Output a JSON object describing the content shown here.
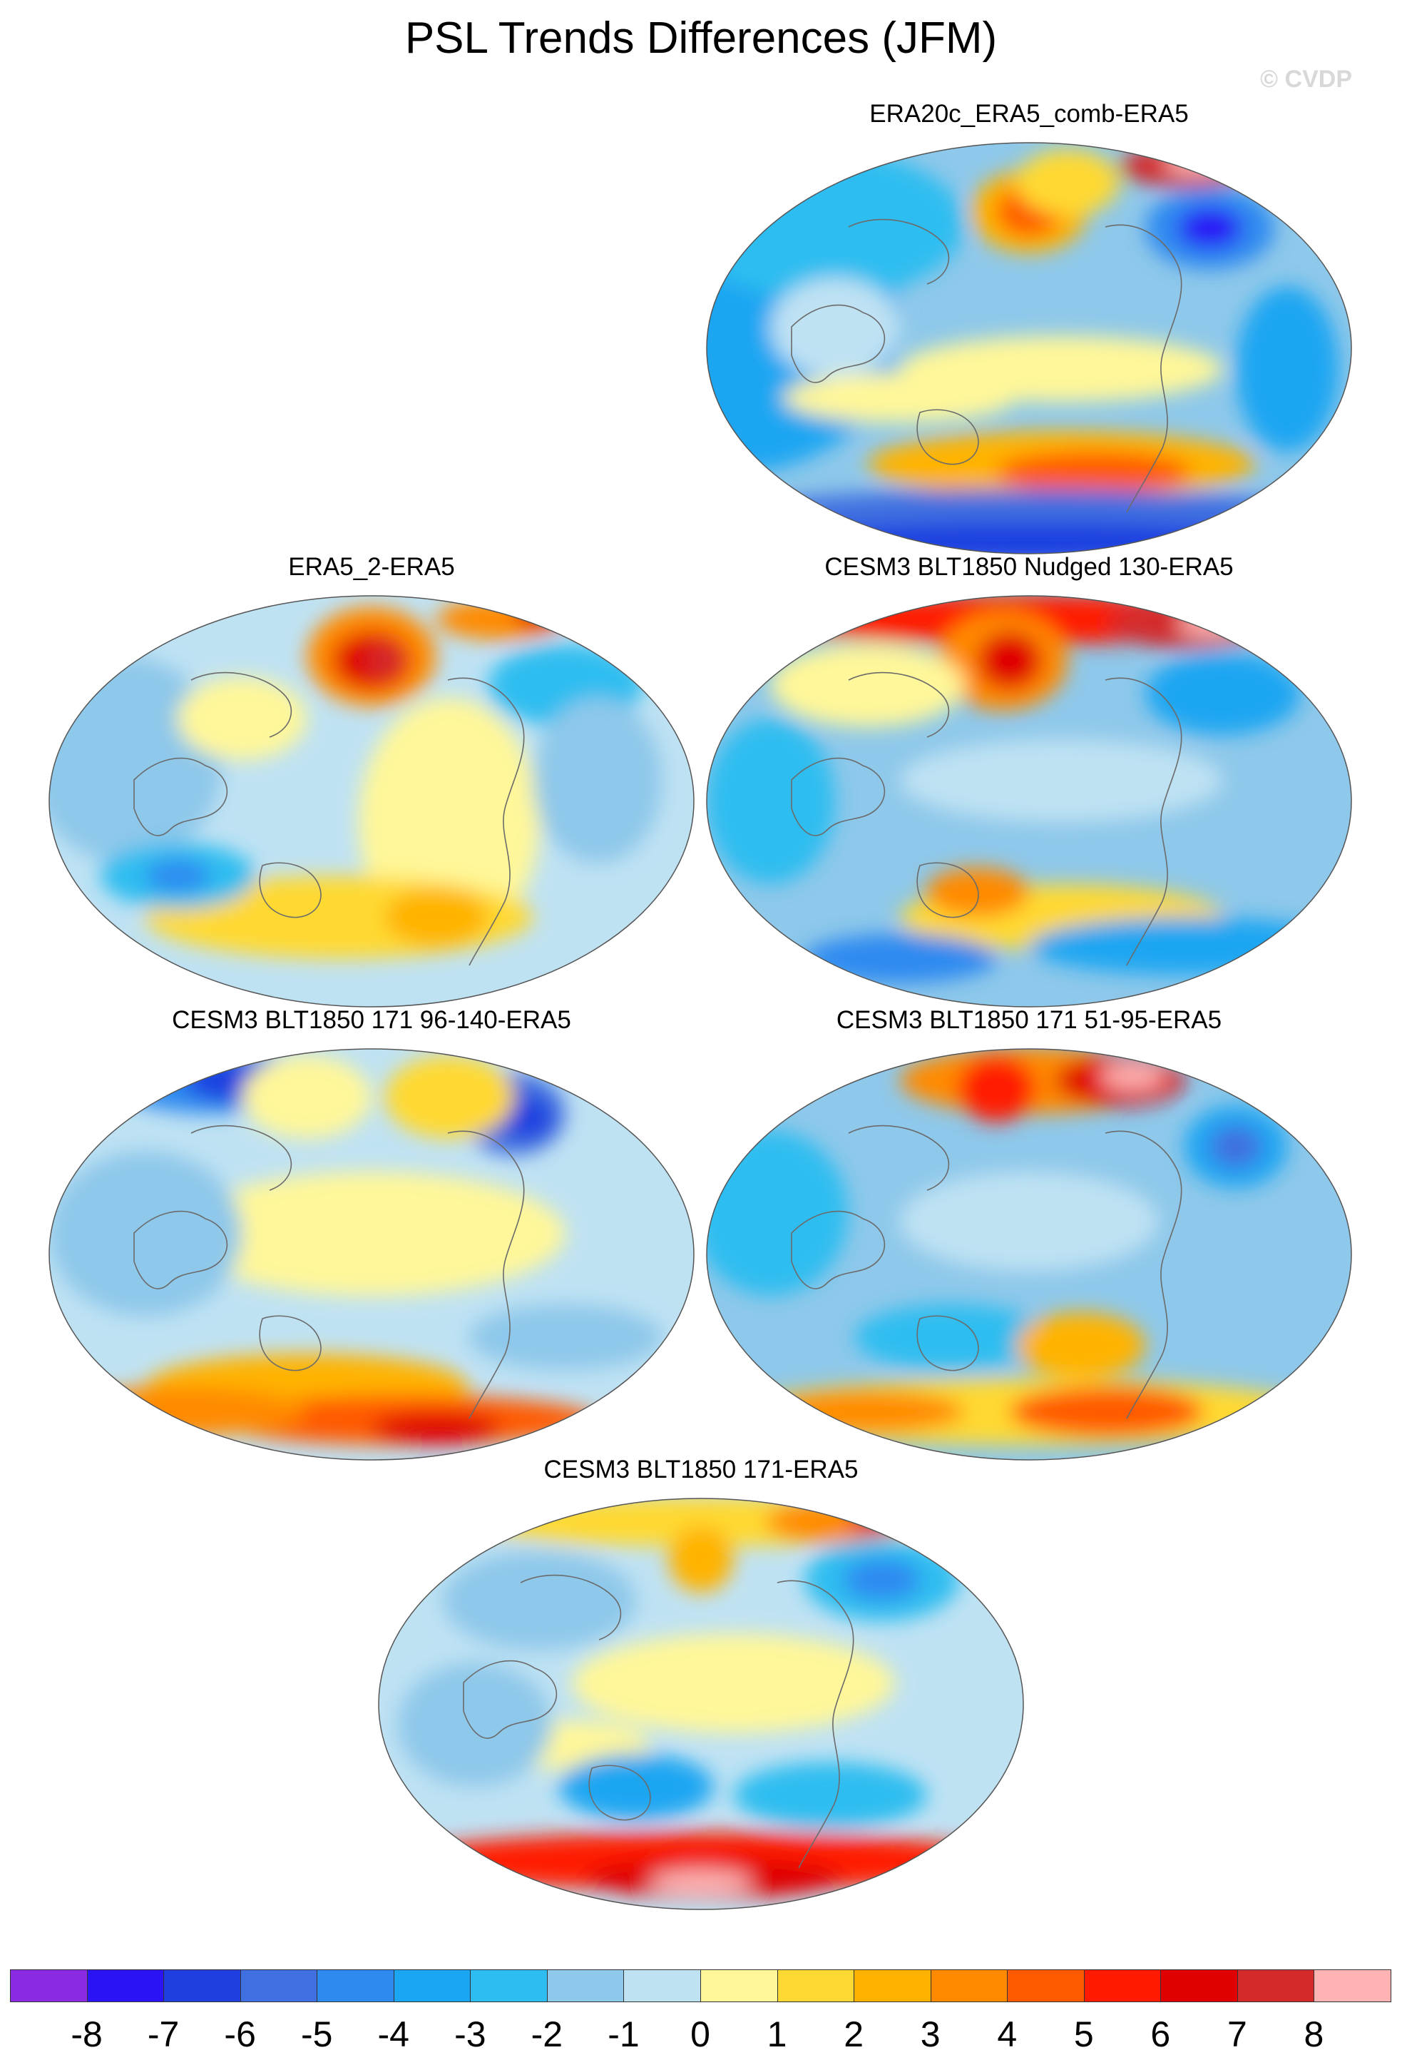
{
  "figure": {
    "title": "PSL Trends Differences (JFM)",
    "watermark": "© CVDP"
  },
  "panels": [
    {
      "id": "p1",
      "title": "ERA20c_ERA5_comb-ERA5"
    },
    {
      "id": "p2",
      "title": "ERA5_2-ERA5"
    },
    {
      "id": "p3",
      "title": "CESM3 BLT1850 Nudged 130-ERA5"
    },
    {
      "id": "p4",
      "title": "CESM3 BLT1850 171 96-140-ERA5"
    },
    {
      "id": "p5",
      "title": "CESM3 BLT1850 171 51-95-ERA5"
    },
    {
      "id": "p6",
      "title": "CESM3 BLT1850 171-ERA5"
    }
  ],
  "colorbar": {
    "labels": [
      "-8",
      "-7",
      "-6",
      "-5",
      "-4",
      "-3",
      "-2",
      "-1",
      "0",
      "1",
      "2",
      "3",
      "4",
      "5",
      "6",
      "7",
      "8"
    ],
    "colors": [
      "#8a2be2",
      "#2a14f5",
      "#1f3fe0",
      "#3f6fe0",
      "#2f8af0",
      "#1aa6f2",
      "#2dbdf0",
      "#8ec8ea",
      "#bfe2f3",
      "#fff799",
      "#ffd933",
      "#ffb300",
      "#ff8a00",
      "#ff5a00",
      "#ff1a00",
      "#e00000",
      "#d42a2a",
      "#ffb3b3"
    ]
  },
  "map_legend": {
    "projection": "Winkel tripel / Robinson-style global, centered on Pacific"
  }
}
